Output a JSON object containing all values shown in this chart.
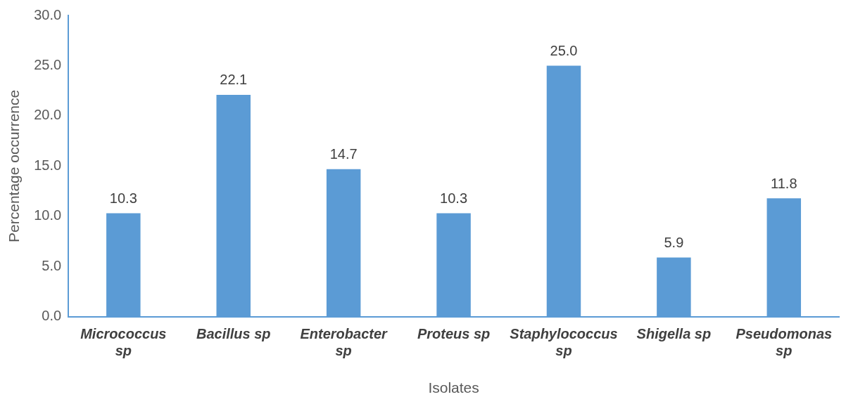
{
  "chart_data": {
    "type": "bar",
    "xlabel": "Isolates",
    "ylabel": "Percentage occurrence",
    "categories": [
      "Micrococcus sp",
      "Bacillus sp",
      "Enterobacter sp",
      "Proteus sp",
      "Staphylococcus sp",
      "Shigella sp",
      "Pseudomonas sp"
    ],
    "values": [
      10.3,
      22.1,
      14.7,
      10.3,
      25.0,
      5.9,
      11.8
    ],
    "value_labels": [
      "10.3",
      "22.1",
      "14.7",
      "10.3",
      "25.0",
      "5.9",
      "11.8"
    ],
    "color": "#5b9bd5",
    "ylim": [
      0,
      30
    ],
    "yticks": [
      {
        "value": 0,
        "label": "0.0"
      },
      {
        "value": 5,
        "label": "5.0"
      },
      {
        "value": 10,
        "label": "10.0"
      },
      {
        "value": 15,
        "label": "15.0"
      },
      {
        "value": 20,
        "label": "20.0"
      },
      {
        "value": 25,
        "label": "25.0"
      },
      {
        "value": 30,
        "label": "30.0"
      }
    ],
    "grid": false,
    "legend": false
  }
}
